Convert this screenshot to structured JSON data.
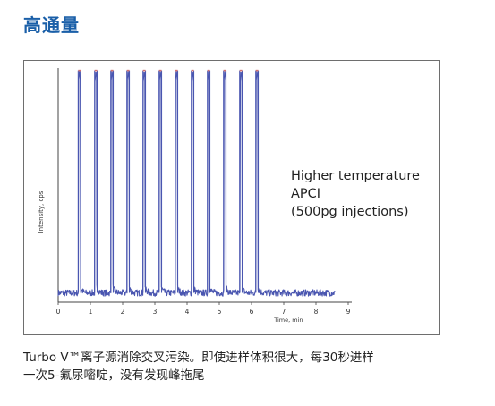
{
  "page": {
    "title": "高通量",
    "caption_lines": [
      "Turbo V™离子源消除交叉污染。即使进样体积很大，每30秒进样",
      "一次5-氟尿嘧啶，没有发现峰拖尾"
    ]
  },
  "colors": {
    "title": "#1a5fa8",
    "trace": "#4a56b0",
    "peak_tip": "#d07070",
    "axis": "#444444",
    "frame": "#6e6e6e"
  },
  "chart_data": {
    "type": "line",
    "title": "",
    "xlabel": "Time, min",
    "ylabel": "Intensity, cps",
    "xlim": [
      0,
      9
    ],
    "x_ticks": [
      "0",
      "1",
      "2",
      "3",
      "4",
      "5",
      "6",
      "7",
      "8",
      "9"
    ],
    "annotation_lines": [
      "Higher temperature",
      "APCI",
      "(500pg injections)"
    ],
    "grid": false,
    "baseline": 0.04,
    "peak_height": 0.99,
    "peaks_min": [
      0.66,
      1.17,
      1.67,
      2.17,
      2.67,
      3.17,
      3.67,
      4.17,
      4.67,
      5.17,
      5.67,
      6.17
    ]
  }
}
